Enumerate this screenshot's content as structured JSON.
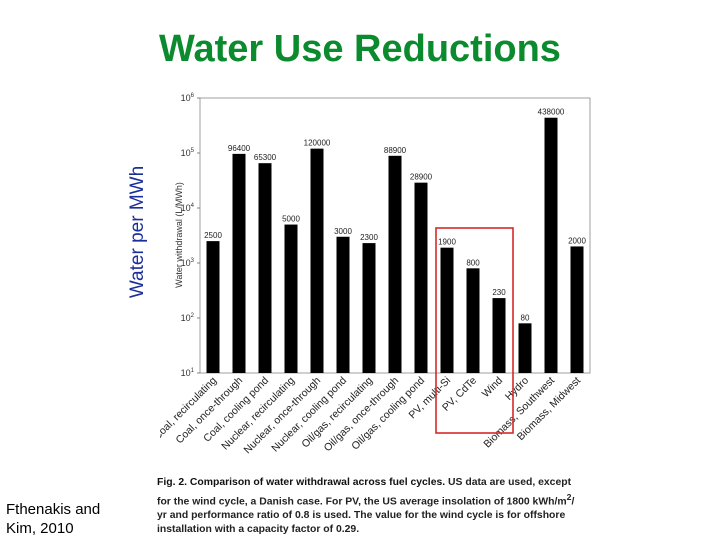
{
  "slide": {
    "title": "Water Use Reductions",
    "rotated_label": "Water per MWh",
    "citation_line1": "Fthenakis and",
    "citation_line2": "Kim, 2010"
  },
  "chart_data": {
    "type": "bar",
    "yscale": "log",
    "ylim": [
      10,
      1000000
    ],
    "ylabel": "Water withdrawal (L/MWh)",
    "yticks": [
      {
        "base": "10",
        "exp": "6",
        "value": 1000000
      },
      {
        "base": "10",
        "exp": "5",
        "value": 100000
      },
      {
        "base": "10",
        "exp": "4",
        "value": 10000
      },
      {
        "base": "10",
        "exp": "3",
        "value": 1000
      },
      {
        "base": "10",
        "exp": "2",
        "value": 100
      },
      {
        "base": "10",
        "exp": "1",
        "value": 10
      }
    ],
    "categories": [
      "Coal, recirculating",
      "Coal, once-through",
      "Coal, cooling pond",
      "Nuclear, recirculating",
      "Nuclear, once-through",
      "Nuclear, cooling pond",
      "Oil/gas, recirculating",
      "Oil/gas, once-through",
      "Oil/gas, cooling pond",
      "PV, multi-Si",
      "PV, CdTe",
      "Wind",
      "Hydro",
      "Biomass, Southwest",
      "Biomass, Midwest"
    ],
    "values": [
      2500,
      96400,
      65300,
      5000,
      120000,
      3000,
      2300,
      88900,
      28900,
      1900,
      800,
      230,
      80,
      438000,
      2000
    ],
    "labels": [
      "2500",
      "96400",
      "65300",
      "5000",
      "120000",
      "3000",
      "2300",
      "88900",
      "28900",
      "1900",
      "800",
      "230",
      "80",
      "438000",
      "2000"
    ],
    "highlight": [
      "PV, multi-Si",
      "PV, CdTe",
      "Wind"
    ],
    "colors": {
      "bar": "#000000",
      "highlight_box": "#d42a2a",
      "title": "#0b8a2e",
      "rotated_label": "#1a2f99"
    }
  },
  "caption": {
    "lead": "Fig. 2. Comparison of water withdrawal across fuel cycles.",
    "line1_rest": " US data are used, except",
    "line2": "for the wind cycle, a Danish case. For PV, the US average insolation of 1800 kWh/m",
    "line2_sup": "2",
    "line2_tail": "/",
    "line3": "yr and performance ratio of 0.8 is used. The value for the wind cycle is for offshore",
    "line4": "installation with a capacity factor of 0.29."
  }
}
